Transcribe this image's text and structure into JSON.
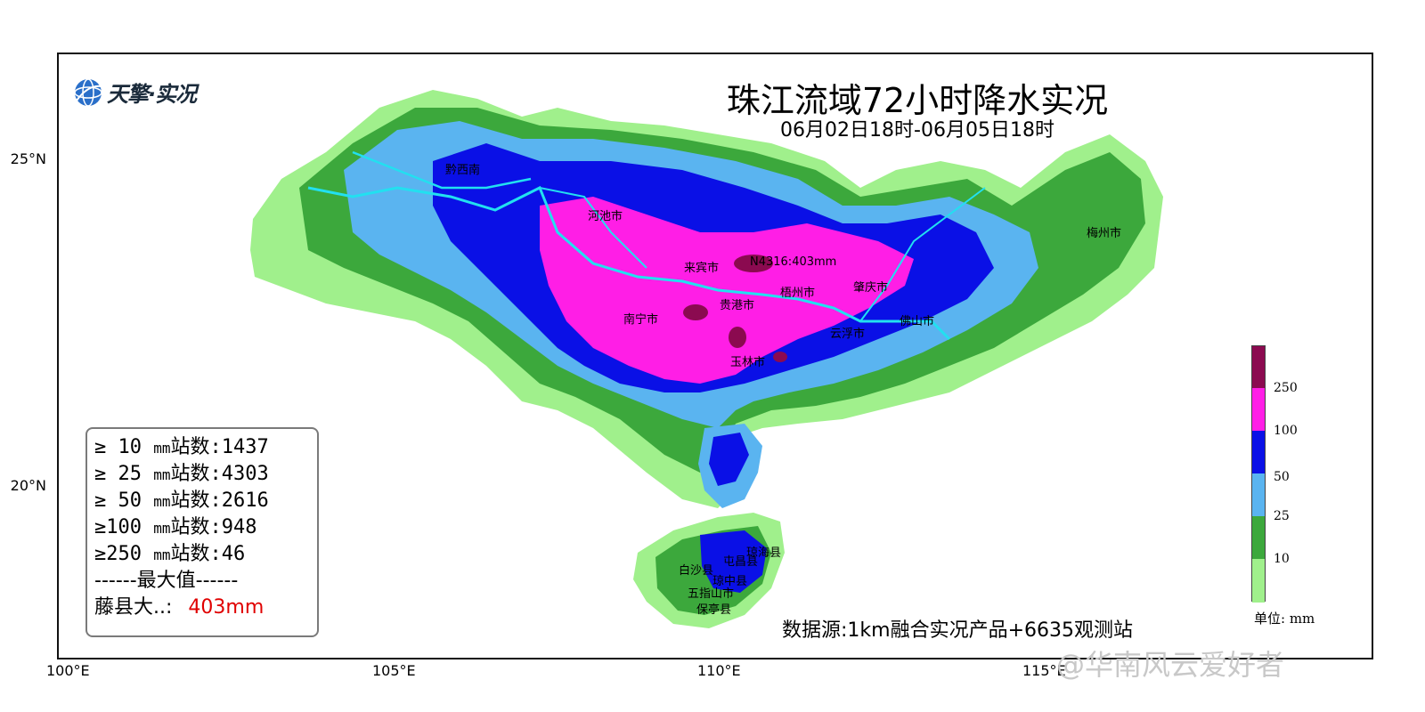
{
  "title": "珠江流域72小时降水实况",
  "subtitle": "06月02日18时-06月05日18时",
  "logo": {
    "text": "天擎·实况",
    "icon": "globe-icon"
  },
  "axes": {
    "lat_ticks": [
      "25°N",
      "20°N"
    ],
    "lon_ticks": [
      "100°E",
      "105°E",
      "110°E",
      "115°E"
    ]
  },
  "cities": [
    "黔西南",
    "河池市",
    "来宾市",
    "N4316:403mm",
    "贵港市",
    "梧州市",
    "肇庆市",
    "南宁市",
    "云浮市",
    "佛山市",
    "玉林市",
    "梅州市",
    "白沙县",
    "屯昌县",
    "琼中县",
    "五指山市",
    "保亭县",
    "琼海县"
  ],
  "stats": {
    "rows": [
      {
        "label": "≥ 10",
        "unit": "mm",
        "text": "站数:1437"
      },
      {
        "label": "≥ 25",
        "unit": "mm",
        "text": "站数:4303"
      },
      {
        "label": "≥ 50",
        "unit": "mm",
        "text": "站数:2616"
      },
      {
        "label": "≥100",
        "unit": "mm",
        "text": "站数:948"
      },
      {
        "label": "≥250",
        "unit": "mm",
        "text": "站数:46"
      }
    ],
    "max_header": "------最大值------",
    "max_station": "藤县大..:",
    "max_value": "403mm"
  },
  "source": "数据源:1km融合实况产品+6635观测站",
  "legend": {
    "labels": [
      "250",
      "100",
      "50",
      "25",
      "10"
    ],
    "unit": "单位: mm",
    "colors": [
      "#8b0a50",
      "#ff1ee6",
      "#0a10e6",
      "#5ab4f0",
      "#3ca83c",
      "#a0f08c"
    ]
  },
  "watermark": "@华南风云爱好者"
}
